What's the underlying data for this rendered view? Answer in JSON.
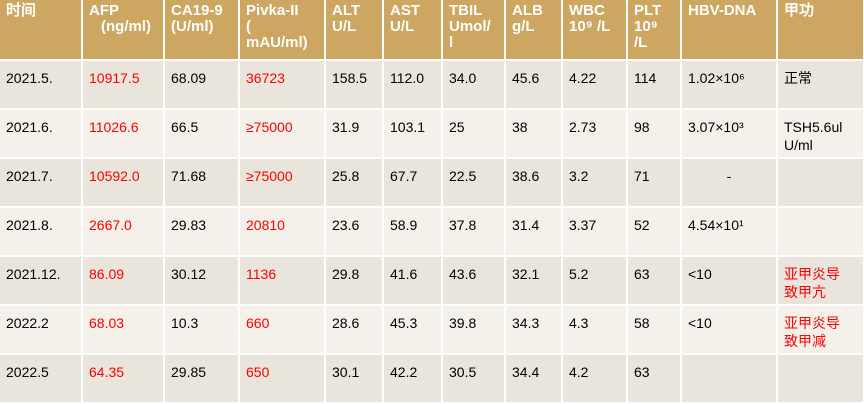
{
  "headers": {
    "time": "时间",
    "afp_1": "AFP",
    "afp_2": "(ng/ml)",
    "ca_1": "CA19-9",
    "ca_2": "(U/ml)",
    "pivka_1": "Pivka-II",
    "pivka_2": "(",
    "pivka_3": "mAU/ml)",
    "alt_1": "ALT",
    "alt_2": "U/L",
    "ast_1": "AST",
    "ast_2": "U/L",
    "tbil_1": "TBIL",
    "tbil_2": "Umol/",
    "tbil_3": "l",
    "alb_1": "ALB",
    "alb_2": "g/L",
    "wbc_1": "WBC",
    "wbc_2": "10⁹ /L",
    "plt_1": "PLT",
    "plt_2": "10⁹",
    "plt_3": "/L",
    "hbv": "HBV-DNA",
    "thyroid": "甲功"
  },
  "rows": [
    {
      "time": "2021.5.",
      "afp": "10917.5",
      "ca": "68.09",
      "pivka": "36723",
      "alt": "158.5",
      "ast": "112.0",
      "tbil": "34.0",
      "alb": "45.6",
      "wbc": "4.22",
      "plt": "114",
      "hbv": "1.02×10⁶",
      "thyroid_1": "正常",
      "thyroid_2": ""
    },
    {
      "time": "2021.6.",
      "afp": "11026.6",
      "ca": "66.5",
      "pivka": "≥75000",
      "alt": "31.9",
      "ast": "103.1",
      "tbil": "25",
      "alb": "38",
      "wbc": "2.73",
      "plt": "98",
      "hbv": "3.07×10³",
      "thyroid_1": "TSH5.6ul",
      "thyroid_2": "U/ml"
    },
    {
      "time": "2021.7.",
      "afp": "10592.0",
      "ca": "71.68",
      "pivka": "≥75000",
      "alt": "25.8",
      "ast": "67.7",
      "tbil": "22.5",
      "alb": "38.6",
      "wbc": "3.2",
      "plt": "71",
      "hbv": "-",
      "thyroid_1": "",
      "thyroid_2": ""
    },
    {
      "time": "2021.8.",
      "afp": "2667.0",
      "ca": "29.83",
      "pivka": "20810",
      "alt": "23.6",
      "ast": "58.9",
      "tbil": "37.8",
      "alb": "31.4",
      "wbc": "3.37",
      "plt": "52",
      "hbv": "4.54×10¹",
      "thyroid_1": "",
      "thyroid_2": ""
    },
    {
      "time": "2021.12.",
      "afp": "86.09",
      "ca": "30.12",
      "pivka": "1136",
      "alt": "29.8",
      "ast": "41.6",
      "tbil": "43.6",
      "alb": "32.1",
      "wbc": "5.2",
      "plt": "63",
      "hbv": "<10",
      "thyroid_1": "亚甲炎导",
      "thyroid_2": "致甲亢"
    },
    {
      "time": "2022.2",
      "afp": "68.03",
      "ca": "10.3",
      "pivka": "660",
      "alt": "28.6",
      "ast": "45.3",
      "tbil": "39.8",
      "alb": "34.3",
      "wbc": "4.3",
      "plt": "58",
      "hbv": "<10",
      "thyroid_1": "亚甲炎导",
      "thyroid_2": "致甲减"
    },
    {
      "time": "2022.5",
      "afp": "64.35",
      "ca": "29.85",
      "pivka": "650",
      "alt": "30.1",
      "ast": "42.2",
      "tbil": "30.5",
      "alb": "34.4",
      "wbc": "4.2",
      "plt": "63",
      "hbv": "",
      "thyroid_1": "",
      "thyroid_2": ""
    }
  ],
  "colors": {
    "header_bg": "#cda761",
    "row_odd": "#eae5dc",
    "row_even": "#f5f1ea",
    "alert_text": "#ff0000"
  }
}
